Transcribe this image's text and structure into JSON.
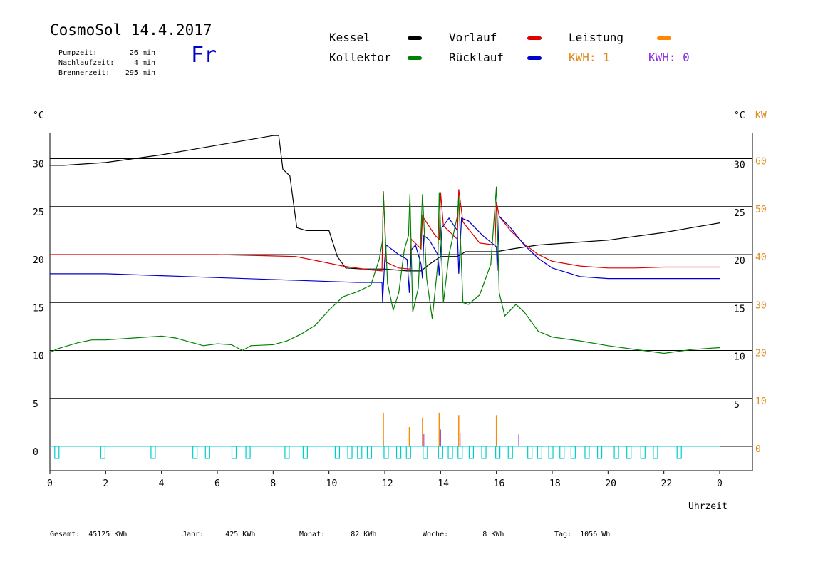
{
  "header": {
    "title": "CosmoSol 14.4.2017",
    "day": "Fr",
    "info": [
      {
        "label": "Pumpzeit:",
        "value": "26 min"
      },
      {
        "label": "Nachlaufzeit:",
        "value": "4 min"
      },
      {
        "label": "Brennerzeit:",
        "value": "295 min"
      }
    ]
  },
  "legend": {
    "kessel": {
      "label": "Kessel",
      "color": "#000000"
    },
    "vorlauf": {
      "label": "Vorlauf",
      "color": "#dd0000"
    },
    "leistung": {
      "label": "Leistung",
      "color": "#ff8800"
    },
    "kollektor": {
      "label": "Kollektor",
      "color": "#008000"
    },
    "ruecklauf": {
      "label": "Rücklauf",
      "color": "#0000cc"
    },
    "kwh1": {
      "label": "KWH: 1",
      "color": "#e08a1e"
    },
    "kwh0": {
      "label": "KWH: 0",
      "color": "#8a2be2"
    }
  },
  "footer": [
    {
      "label": "Gesamt:",
      "value": "45125 KWh"
    },
    {
      "label": "Jahr:",
      "value": "425 KWh"
    },
    {
      "label": "Monat:",
      "value": "82 KWh"
    },
    {
      "label": "Woche:",
      "value": "8 KWh"
    },
    {
      "label": "Tag:",
      "value": "1056 Wh"
    }
  ],
  "chart_data": {
    "type": "line",
    "xlabel": "Uhrzeit",
    "x_ticks": [
      "0",
      "2",
      "4",
      "6",
      "8",
      "10",
      "12",
      "14",
      "16",
      "18",
      "20",
      "22",
      "0"
    ],
    "xlim": [
      0,
      24
    ],
    "left_unit": "°C",
    "right_unit_temp": "°C",
    "right_unit_power": "KW",
    "left_ticks": [
      0,
      5,
      10,
      15,
      20,
      25,
      30
    ],
    "right_temp_ticks": [
      5,
      10,
      15,
      20,
      25,
      30
    ],
    "right_power_ticks": [
      0,
      10,
      20,
      30,
      40,
      50,
      60
    ],
    "ylim": [
      -2,
      33
    ],
    "grid": true,
    "series": [
      {
        "name": "Kessel",
        "color": "#000000",
        "points": [
          [
            0,
            29.3
          ],
          [
            0.5,
            29.3
          ],
          [
            2,
            29.6
          ],
          [
            4,
            30.4
          ],
          [
            6,
            31.4
          ],
          [
            8,
            32.4
          ],
          [
            8.2,
            32.4
          ],
          [
            8.35,
            28.9
          ],
          [
            8.6,
            28.2
          ],
          [
            8.85,
            22.8
          ],
          [
            9.2,
            22.5
          ],
          [
            10,
            22.5
          ],
          [
            10.3,
            19.8
          ],
          [
            10.6,
            18.6
          ],
          [
            11.2,
            18.5
          ],
          [
            12,
            18.5
          ],
          [
            12.8,
            18.3
          ],
          [
            13.3,
            18.3
          ],
          [
            13.6,
            19
          ],
          [
            14,
            19.8
          ],
          [
            14.6,
            19.8
          ],
          [
            14.9,
            20.3
          ],
          [
            15.5,
            20.3
          ],
          [
            16,
            20.3
          ],
          [
            16.6,
            20.6
          ],
          [
            17.5,
            21
          ],
          [
            19,
            21.3
          ],
          [
            20,
            21.5
          ],
          [
            21,
            21.9
          ],
          [
            22,
            22.3
          ],
          [
            23,
            22.8
          ],
          [
            24,
            23.3
          ]
        ]
      },
      {
        "name": "Vorlauf",
        "color": "#dd0000",
        "points": [
          [
            0,
            20
          ],
          [
            2,
            20
          ],
          [
            4,
            20
          ],
          [
            6,
            20
          ],
          [
            8.8,
            19.8
          ],
          [
            9.5,
            19.4
          ],
          [
            10.5,
            18.8
          ],
          [
            11.5,
            18.4
          ],
          [
            11.9,
            18.3
          ],
          [
            11.95,
            26.6
          ],
          [
            12.05,
            19.2
          ],
          [
            12.5,
            18.6
          ],
          [
            12.9,
            18.5
          ],
          [
            12.95,
            21.6
          ],
          [
            13.3,
            20.6
          ],
          [
            13.35,
            24
          ],
          [
            13.8,
            22
          ],
          [
            13.95,
            21.6
          ],
          [
            14,
            26.5
          ],
          [
            14.1,
            23
          ],
          [
            14.6,
            21.6
          ],
          [
            14.65,
            26.8
          ],
          [
            14.8,
            23.4
          ],
          [
            15.4,
            21.2
          ],
          [
            15.95,
            21
          ],
          [
            16,
            25.5
          ],
          [
            16.1,
            24
          ],
          [
            16.5,
            22.5
          ],
          [
            17,
            21.1
          ],
          [
            17.5,
            20
          ],
          [
            18,
            19.3
          ],
          [
            19,
            18.8
          ],
          [
            20,
            18.6
          ],
          [
            21,
            18.6
          ],
          [
            22,
            18.7
          ],
          [
            24,
            18.7
          ]
        ]
      },
      {
        "name": "Rücklauf",
        "color": "#0000cc",
        "points": [
          [
            0,
            18
          ],
          [
            2,
            18
          ],
          [
            4,
            17.8
          ],
          [
            6,
            17.6
          ],
          [
            8,
            17.4
          ],
          [
            9,
            17.3
          ],
          [
            10,
            17.2
          ],
          [
            11,
            17.1
          ],
          [
            11.9,
            17.1
          ],
          [
            11.92,
            15
          ],
          [
            12,
            19.5
          ],
          [
            12.05,
            21
          ],
          [
            12.5,
            20
          ],
          [
            12.8,
            19.5
          ],
          [
            12.88,
            16
          ],
          [
            12.95,
            20.5
          ],
          [
            13.1,
            21
          ],
          [
            13.3,
            19
          ],
          [
            13.35,
            17.5
          ],
          [
            13.4,
            22
          ],
          [
            13.6,
            21.5
          ],
          [
            13.9,
            20
          ],
          [
            13.95,
            17.8
          ],
          [
            14.05,
            22.8
          ],
          [
            14.3,
            23.8
          ],
          [
            14.6,
            22.5
          ],
          [
            14.65,
            18
          ],
          [
            14.75,
            23.8
          ],
          [
            15,
            23.5
          ],
          [
            15.5,
            22
          ],
          [
            16,
            20.8
          ],
          [
            16.03,
            18.3
          ],
          [
            16.1,
            24
          ],
          [
            16.5,
            22.8
          ],
          [
            17,
            21
          ],
          [
            17.5,
            19.6
          ],
          [
            18,
            18.6
          ],
          [
            19,
            17.7
          ],
          [
            20,
            17.5
          ],
          [
            22,
            17.5
          ],
          [
            24,
            17.5
          ]
        ]
      },
      {
        "name": "Kollektor",
        "color": "#008000",
        "points": [
          [
            0,
            9.8
          ],
          [
            0.3,
            10.2
          ],
          [
            1,
            10.8
          ],
          [
            1.5,
            11.1
          ],
          [
            2,
            11.1
          ],
          [
            3,
            11.3
          ],
          [
            4,
            11.5
          ],
          [
            4.5,
            11.3
          ],
          [
            5,
            10.9
          ],
          [
            5.5,
            10.5
          ],
          [
            6,
            10.7
          ],
          [
            6.5,
            10.6
          ],
          [
            6.9,
            10
          ],
          [
            7.2,
            10.5
          ],
          [
            8,
            10.6
          ],
          [
            8.5,
            11
          ],
          [
            9,
            11.7
          ],
          [
            9.5,
            12.6
          ],
          [
            10,
            14.2
          ],
          [
            10.5,
            15.6
          ],
          [
            11,
            16.1
          ],
          [
            11.5,
            16.8
          ],
          [
            11.8,
            19.5
          ],
          [
            11.92,
            21.5
          ],
          [
            11.95,
            26.4
          ],
          [
            12.1,
            17
          ],
          [
            12.3,
            14.2
          ],
          [
            12.5,
            16
          ],
          [
            12.7,
            20.5
          ],
          [
            12.85,
            22
          ],
          [
            12.9,
            26.3
          ],
          [
            13,
            14
          ],
          [
            13.2,
            16.5
          ],
          [
            13.3,
            22.5
          ],
          [
            13.35,
            26.3
          ],
          [
            13.5,
            17.5
          ],
          [
            13.7,
            13.3
          ],
          [
            13.9,
            19
          ],
          [
            13.95,
            26.5
          ],
          [
            14.1,
            15
          ],
          [
            14.3,
            20
          ],
          [
            14.45,
            22
          ],
          [
            14.6,
            24
          ],
          [
            14.65,
            26
          ],
          [
            14.8,
            15
          ],
          [
            15,
            14.8
          ],
          [
            15.4,
            15.8
          ],
          [
            15.8,
            19
          ],
          [
            16,
            27.1
          ],
          [
            16.1,
            16
          ],
          [
            16.3,
            13.6
          ],
          [
            16.7,
            14.8
          ],
          [
            17,
            14
          ],
          [
            17.5,
            12
          ],
          [
            18,
            11.4
          ],
          [
            19,
            11
          ],
          [
            20,
            10.5
          ],
          [
            21,
            10.1
          ],
          [
            22,
            9.7
          ],
          [
            23,
            10.1
          ],
          [
            24,
            10.3
          ]
        ]
      }
    ],
    "power_series": [
      {
        "name": "Leistung",
        "color": "#ff8800",
        "spikes": [
          [
            11.95,
            7
          ],
          [
            12.88,
            4
          ],
          [
            13.35,
            6
          ],
          [
            13.95,
            7
          ],
          [
            14.65,
            6.5
          ],
          [
            16.0,
            6.5
          ]
        ]
      }
    ],
    "pump_markers_x": [
      0.25,
      1.9,
      3.7,
      5.2,
      5.65,
      6.6,
      7.1,
      8.5,
      9.15,
      10.3,
      10.75,
      11.1,
      11.45,
      12.05,
      12.5,
      12.85,
      13.45,
      14.0,
      14.35,
      14.7,
      15.1,
      15.55,
      16.05,
      16.5,
      17.2,
      17.55,
      17.95,
      18.35,
      18.75,
      19.25,
      19.7,
      20.3,
      20.75,
      21.25,
      21.7,
      22.55
    ],
    "kwh_traces": [
      {
        "name": "KWH: 1",
        "color": "#e08a1e",
        "points": [
          [
            11.95,
            -0.5
          ],
          [
            13.95,
            0.6
          ],
          [
            16.0,
            -0.5
          ]
        ]
      },
      {
        "name": "KWH: 0",
        "color": "#8a2be2",
        "points": [
          [
            13.4,
            0.6
          ],
          [
            14.0,
            1.5
          ],
          [
            14.7,
            0.8
          ],
          [
            16.8,
            0.5
          ]
        ]
      }
    ]
  }
}
